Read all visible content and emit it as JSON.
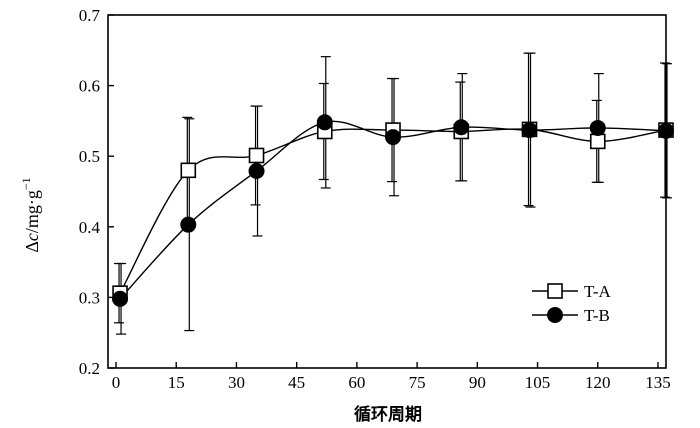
{
  "chart_data": {
    "type": "line",
    "xlabel": "循环周期",
    "ylabel": {
      "delta": "Δ",
      "var": "c",
      "unit": "/mg·g",
      "exp": "−1"
    },
    "xlim": [
      -2,
      137
    ],
    "ylim": [
      0.2,
      0.7
    ],
    "xticks": [
      0,
      15,
      30,
      45,
      60,
      75,
      90,
      105,
      120,
      135
    ],
    "yticks": [
      0.2,
      0.3,
      0.4,
      0.5,
      0.6,
      0.7
    ],
    "ytick_labels": [
      "0.2",
      "0.3",
      "0.4",
      "0.5",
      "0.6",
      "0.7"
    ],
    "grid": false,
    "legend_position": "lower-right",
    "series": [
      {
        "name": "T-A",
        "marker": "open-square",
        "color": "#000000",
        "x": [
          1,
          18,
          35,
          52,
          69,
          86,
          103,
          120,
          137
        ],
        "y": [
          0.306,
          0.48,
          0.501,
          0.535,
          0.537,
          0.535,
          0.538,
          0.521,
          0.537
        ],
        "err": [
          0.042,
          0.075,
          0.07,
          0.068,
          0.073,
          0.07,
          0.108,
          0.058,
          0.095
        ]
      },
      {
        "name": "T-B",
        "marker": "filled-circle",
        "color": "#000000",
        "x": [
          1,
          18,
          35,
          52,
          69,
          86,
          103,
          120,
          137
        ],
        "y": [
          0.298,
          0.403,
          0.479,
          0.548,
          0.527,
          0.541,
          0.537,
          0.54,
          0.536
        ],
        "err": [
          0.05,
          0.15,
          0.092,
          0.093,
          0.083,
          0.076,
          0.109,
          0.077,
          0.095
        ]
      }
    ]
  }
}
